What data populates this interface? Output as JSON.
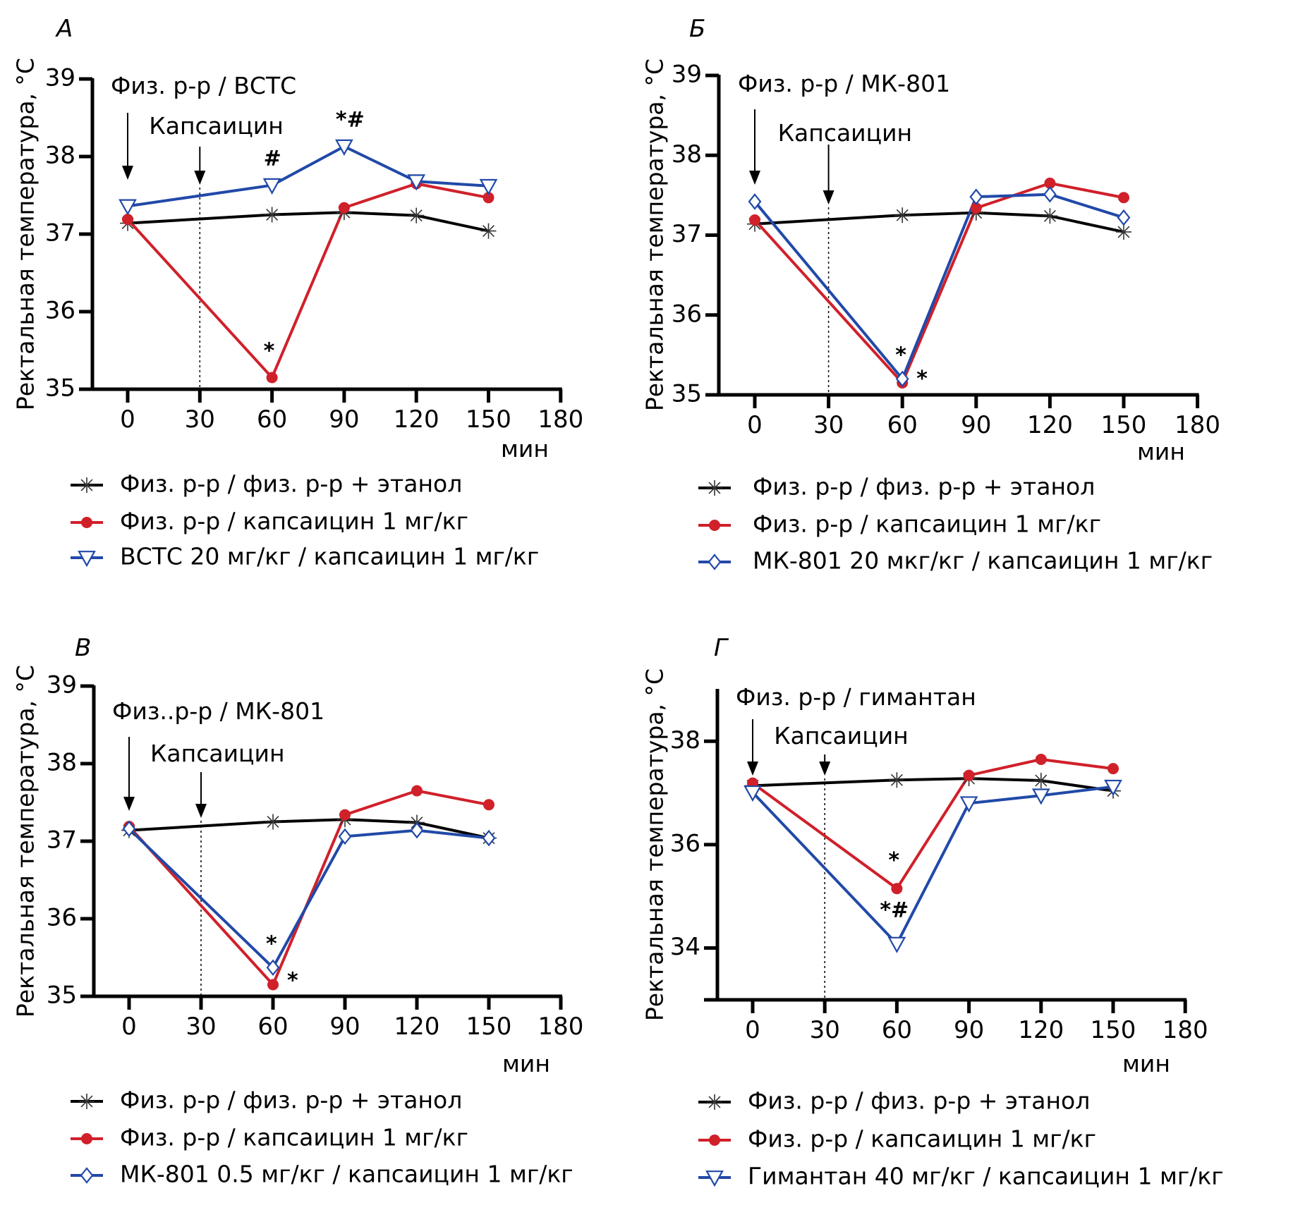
{
  "figure": {
    "y_axis_label": "Ректальная температура, °С",
    "x_unit_label": "мин",
    "colors": {
      "control": "#000000",
      "capsaicin": "#d0202a",
      "treatment": "#2149a8"
    }
  },
  "chart_data": [
    {
      "panel": "А",
      "type": "line",
      "xlabel": "мин",
      "ylabel": "Ректальная температура, °С",
      "x": [
        0,
        30,
        60,
        90,
        120,
        150,
        180
      ],
      "x_ticks": [
        "0",
        "30",
        "60",
        "90",
        "120",
        "150",
        "180"
      ],
      "xlim": [
        0,
        180
      ],
      "ylim": [
        35,
        39
      ],
      "y_ticks": [
        "35",
        "36",
        "37",
        "38",
        "39"
      ],
      "annotations": {
        "pretreatment": "Физ. р-р / ВСТС",
        "injection": "Капсаицин",
        "pretreatment_time": 0,
        "injection_time": 30
      },
      "series": [
        {
          "name": "Физ. р-р / физ. р-р + этанол",
          "key": "control",
          "marker": "asterisk",
          "x": [
            0,
            60,
            90,
            120,
            150
          ],
          "values": [
            37.14,
            37.25,
            37.28,
            37.24,
            37.04
          ],
          "sig": [
            "",
            "",
            "",
            "",
            ""
          ]
        },
        {
          "name": "Физ. р-р / капсаицин 1 мг/кг",
          "key": "capsaicin",
          "marker": "circle",
          "x": [
            0,
            60,
            90,
            120,
            150
          ],
          "values": [
            37.19,
            35.15,
            37.34,
            37.65,
            37.47
          ],
          "sig": [
            "",
            "*",
            "",
            "",
            ""
          ]
        },
        {
          "name": "ВСТС 20 мг/кг / капсаицин 1 мг/кг",
          "key": "treatment",
          "marker": "triangle-down",
          "x": [
            0,
            60,
            90,
            120,
            150
          ],
          "values": [
            37.36,
            37.63,
            38.13,
            37.68,
            37.62
          ],
          "sig": [
            "",
            "#",
            "*#",
            "",
            ""
          ]
        }
      ],
      "legend": "bottom-left"
    },
    {
      "panel": "Б",
      "type": "line",
      "xlabel": "мин",
      "ylabel": "Ректальная температура, °С",
      "x": [
        0,
        30,
        60,
        90,
        120,
        150,
        180
      ],
      "x_ticks": [
        "0",
        "30",
        "60",
        "90",
        "120",
        "150",
        "180"
      ],
      "xlim": [
        0,
        180
      ],
      "ylim": [
        35,
        39
      ],
      "y_ticks": [
        "35",
        "36",
        "37",
        "38",
        "39"
      ],
      "annotations": {
        "pretreatment": "Физ. р-р / МК-801",
        "injection": "Капсаицин",
        "pretreatment_time": 0,
        "injection_time": 30
      },
      "series": [
        {
          "name": "Физ. р-р / физ. р-р + этанол",
          "key": "control",
          "marker": "asterisk",
          "x": [
            0,
            60,
            90,
            120,
            150
          ],
          "values": [
            37.14,
            37.25,
            37.28,
            37.24,
            37.04
          ],
          "sig": [
            "",
            "",
            "",
            "",
            ""
          ]
        },
        {
          "name": "Физ. р-р / капсаицин 1 мг/кг",
          "key": "capsaicin",
          "marker": "circle",
          "x": [
            0,
            60,
            90,
            120,
            150
          ],
          "values": [
            37.19,
            35.15,
            37.34,
            37.65,
            37.47
          ],
          "sig": [
            "",
            "*",
            "",
            "",
            ""
          ]
        },
        {
          "name": "МК-801 20 мкг/кг / капсаицин 1 мг/кг",
          "key": "treatment",
          "marker": "diamond",
          "x": [
            0,
            60,
            90,
            120,
            150
          ],
          "values": [
            37.42,
            35.2,
            37.48,
            37.51,
            37.22
          ],
          "sig": [
            "",
            "*",
            "",
            "",
            ""
          ]
        }
      ],
      "legend": "bottom-left"
    },
    {
      "panel": "В",
      "type": "line",
      "xlabel": "мин",
      "ylabel": "Ректальная температура, °С",
      "x": [
        0,
        30,
        60,
        90,
        120,
        150,
        180
      ],
      "x_ticks": [
        "0",
        "30",
        "60",
        "90",
        "120",
        "150",
        "180"
      ],
      "xlim": [
        0,
        180
      ],
      "ylim": [
        35,
        39
      ],
      "y_ticks": [
        "35",
        "36",
        "37",
        "38",
        "39"
      ],
      "annotations": {
        "pretreatment": "Физ..р-р / МК-801",
        "injection": "Капсаицин",
        "pretreatment_time": 0,
        "injection_time": 30
      },
      "series": [
        {
          "name": "Физ. р-р / физ. р-р + этанол",
          "key": "control",
          "marker": "asterisk",
          "x": [
            0,
            60,
            90,
            120,
            150
          ],
          "values": [
            37.14,
            37.25,
            37.28,
            37.24,
            37.04
          ],
          "sig": [
            "",
            "",
            "",
            "",
            ""
          ]
        },
        {
          "name": "Физ. р-р / капсаицин 1 мг/кг",
          "key": "capsaicin",
          "marker": "circle",
          "x": [
            0,
            60,
            90,
            120,
            150
          ],
          "values": [
            37.19,
            35.15,
            37.34,
            37.65,
            37.47
          ],
          "sig": [
            "",
            "*",
            "",
            "",
            ""
          ]
        },
        {
          "name": "МК-801 0.5 мг/кг  / капсаицин 1 мг/кг",
          "key": "treatment",
          "marker": "diamond",
          "x": [
            0,
            60,
            90,
            120,
            150
          ],
          "values": [
            37.16,
            35.37,
            37.06,
            37.14,
            37.04
          ],
          "sig": [
            "",
            "*",
            "",
            "",
            ""
          ]
        }
      ],
      "legend": "bottom-left"
    },
    {
      "panel": "Г",
      "type": "line",
      "xlabel": "мин",
      "ylabel": "Ректальная температура, °С",
      "x": [
        0,
        30,
        60,
        90,
        120,
        150,
        180
      ],
      "x_ticks": [
        "0",
        "30",
        "60",
        "90",
        "120",
        "150",
        "180"
      ],
      "xlim": [
        0,
        180
      ],
      "ylim": [
        33,
        39
      ],
      "y_ticks": [
        "34",
        "36",
        "38"
      ],
      "annotations": {
        "pretreatment": "Физ. р-р / гимантан",
        "injection": "Капсаицин",
        "pretreatment_time": 0,
        "injection_time": 30
      },
      "series": [
        {
          "name": "Физ. р-р / физ. р-р + этанол",
          "key": "control",
          "marker": "asterisk",
          "x": [
            0,
            60,
            90,
            120,
            150
          ],
          "values": [
            37.14,
            37.25,
            37.28,
            37.24,
            37.04
          ],
          "sig": [
            "",
            "",
            "",
            "",
            ""
          ]
        },
        {
          "name": "Физ. р-р / капсаицин 1 мг/кг",
          "key": "capsaicin",
          "marker": "circle",
          "x": [
            0,
            60,
            90,
            120,
            150
          ],
          "values": [
            37.19,
            35.15,
            37.34,
            37.65,
            37.47
          ],
          "sig": [
            "",
            "*",
            "",
            "",
            ""
          ]
        },
        {
          "name": "Гимантан 40 мг/кг / капсаицин 1 мг/кг",
          "key": "treatment",
          "marker": "triangle-down",
          "x": [
            0,
            60,
            90,
            120,
            150
          ],
          "values": [
            37.01,
            34.08,
            36.8,
            36.95,
            37.12
          ],
          "sig": [
            "",
            "*#",
            "",
            "",
            ""
          ]
        }
      ],
      "legend": "bottom-left"
    }
  ]
}
